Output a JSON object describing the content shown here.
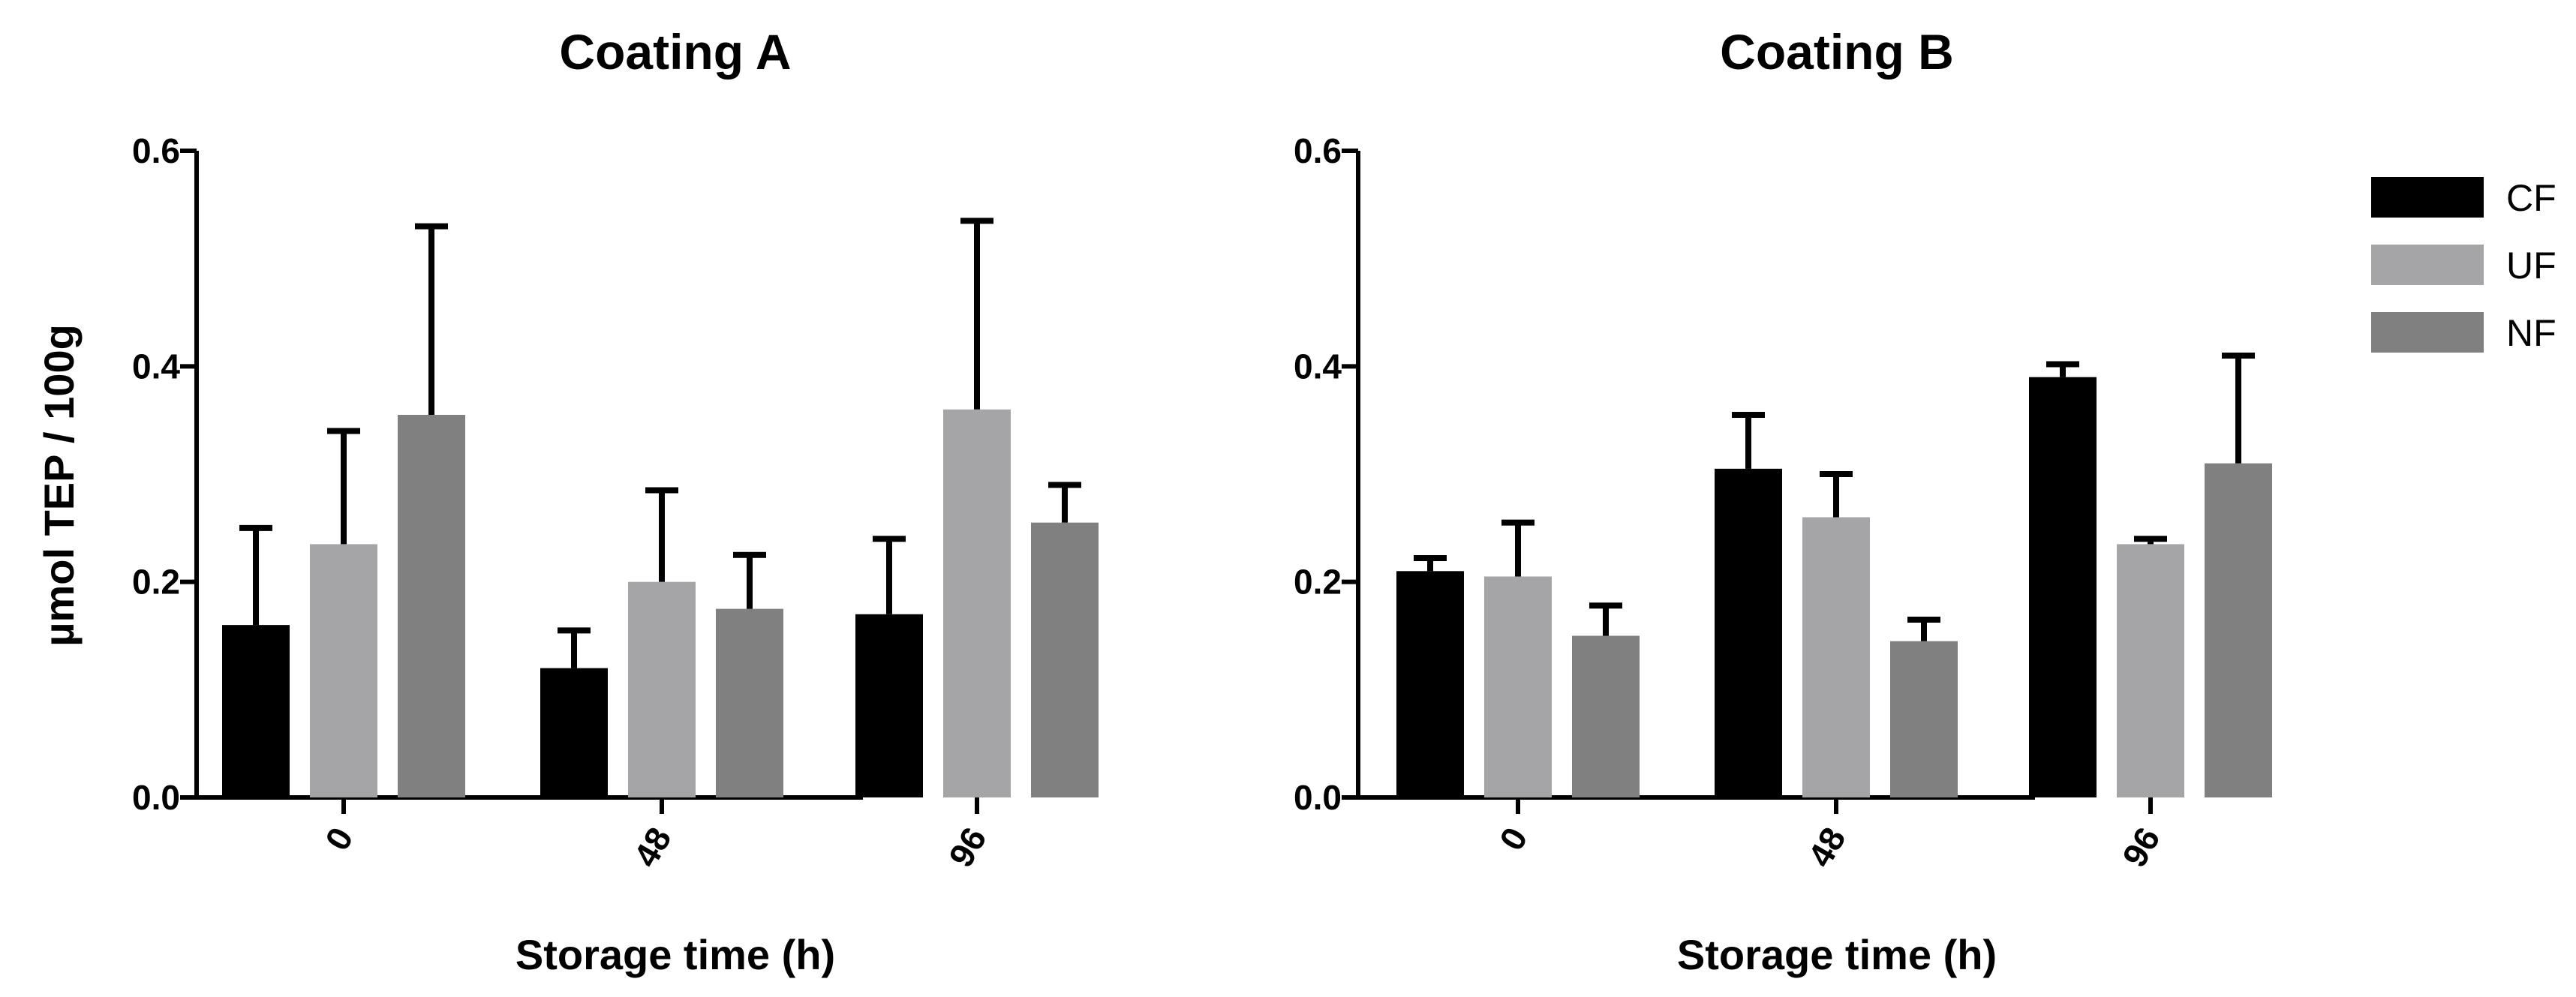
{
  "chart_data": [
    {
      "type": "bar",
      "title": "Coating A",
      "xlabel": "Storage time (h)",
      "ylabel": "µmol TEP / 100g",
      "ylim": [
        0,
        0.6
      ],
      "yticks": [
        "0.0",
        "0.2",
        "0.4",
        "0.6"
      ],
      "categories": [
        "0",
        "48",
        "96"
      ],
      "series": [
        {
          "name": "CF",
          "color": "#000000",
          "values": [
            0.16,
            0.12,
            0.17
          ],
          "errors": [
            0.09,
            0.035,
            0.07
          ]
        },
        {
          "name": "UF",
          "color": "#a5a5a8",
          "values": [
            0.235,
            0.2,
            0.36
          ],
          "errors": [
            0.105,
            0.085,
            0.175
          ]
        },
        {
          "name": "NF",
          "color": "#808080",
          "values": [
            0.355,
            0.175,
            0.255
          ],
          "errors": [
            0.175,
            0.05,
            0.035
          ]
        }
      ]
    },
    {
      "type": "bar",
      "title": "Coating  B",
      "xlabel": "Storage time (h)",
      "ylabel": "",
      "ylim": [
        0,
        0.6
      ],
      "yticks": [
        "0.0",
        "0.2",
        "0.4",
        "0.6"
      ],
      "categories": [
        "0",
        "48",
        "96"
      ],
      "series": [
        {
          "name": "CF",
          "color": "#000000",
          "values": [
            0.21,
            0.305,
            0.39
          ],
          "errors": [
            0.012,
            0.05,
            0.012
          ]
        },
        {
          "name": "UF",
          "color": "#a5a5a8",
          "values": [
            0.205,
            0.26,
            0.235
          ],
          "errors": [
            0.05,
            0.04,
            0.005
          ]
        },
        {
          "name": "NF",
          "color": "#808080",
          "values": [
            0.15,
            0.145,
            0.31
          ],
          "errors": [
            0.028,
            0.02,
            0.1
          ]
        }
      ]
    }
  ],
  "legend": {
    "items": [
      {
        "label": "CF",
        "color": "#000000"
      },
      {
        "label": "UF",
        "color": "#a5a5a8"
      },
      {
        "label": "NF",
        "color": "#808080"
      }
    ]
  }
}
